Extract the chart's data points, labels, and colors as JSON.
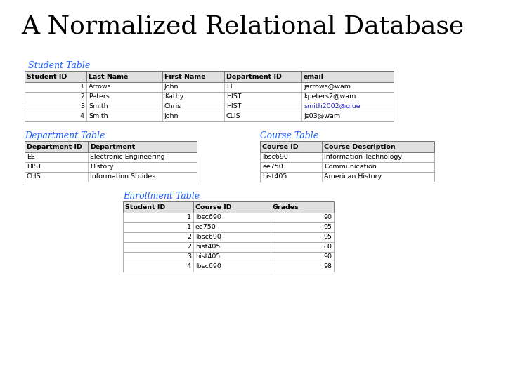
{
  "title": "A Normalized Relational Database",
  "title_fontsize": 26,
  "title_font": "serif",
  "bg_color": "#ffffff",
  "label_color": "#1a5eff",
  "table_text_color": "#000000",
  "link_color": "#2222cc",
  "student_table_label": "Student Table",
  "student_cols": [
    "Student ID",
    "Last Name",
    "First Name",
    "Department ID",
    "email"
  ],
  "student_data": [
    [
      "1",
      "Arrows",
      "John",
      "EE",
      "jarrows@wam"
    ],
    [
      "2",
      "Peters",
      "Kathy",
      "HIST",
      "kpeters2@wam"
    ],
    [
      "3",
      "Smith",
      "Chris",
      "HIST",
      "smith2002@glue"
    ],
    [
      "4",
      "Smith",
      "John",
      "CLIS",
      "js03@wam"
    ]
  ],
  "student_email_link_row": 2,
  "dept_table_label": "Department Table",
  "dept_cols": [
    "Department ID",
    "Department"
  ],
  "dept_data": [
    [
      "EE",
      "Electronic Engineering"
    ],
    [
      "HIST",
      "History"
    ],
    [
      "CLIS",
      "Information Stuides"
    ]
  ],
  "course_table_label": "Course Table",
  "course_cols": [
    "Course ID",
    "Course Description"
  ],
  "course_data": [
    [
      "lbsc690",
      "Information Technology"
    ],
    [
      "ee750",
      "Communication"
    ],
    [
      "hist405",
      "American History"
    ]
  ],
  "enrollment_table_label": "Enrollment Table",
  "enrollment_cols": [
    "Student ID",
    "Course ID",
    "Grades"
  ],
  "enrollment_data": [
    [
      "1",
      "lbsc690",
      "90"
    ],
    [
      "1",
      "ee750",
      "95"
    ],
    [
      "2",
      "lbsc690",
      "95"
    ],
    [
      "2",
      "hist405",
      "80"
    ],
    [
      "3",
      "hist405",
      "90"
    ],
    [
      "4",
      "lbsc690",
      "98"
    ]
  ]
}
